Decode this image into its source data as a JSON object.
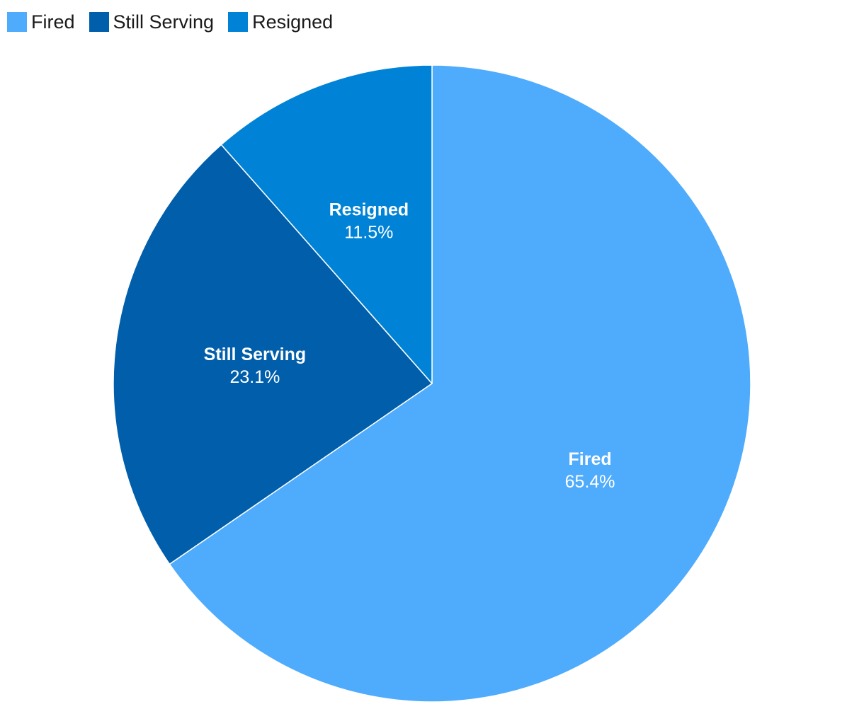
{
  "chart_data": {
    "type": "pie",
    "title": "",
    "legend_position": "top-left",
    "slices": [
      {
        "label": "Fired",
        "value": 65.4,
        "display": "65.4%",
        "color": "#4FABFC"
      },
      {
        "label": "Still Serving",
        "value": 23.1,
        "display": "23.1%",
        "color": "#005EAA"
      },
      {
        "label": "Resigned",
        "value": 11.5,
        "display": "11.5%",
        "color": "#0083D6"
      }
    ]
  }
}
